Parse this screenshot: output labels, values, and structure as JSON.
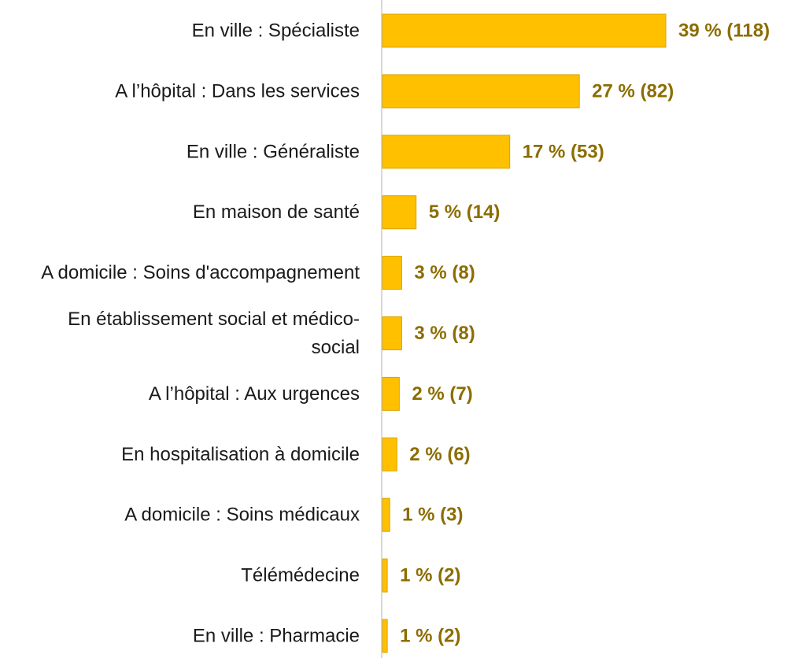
{
  "chart_data": {
    "type": "bar",
    "orientation": "horizontal",
    "title": "",
    "xlabel": "",
    "ylabel": "",
    "categories": [
      "En ville : Spécialiste",
      "A l’hôpital : Dans les services",
      "En ville : Généraliste",
      "En maison de santé",
      "A domicile : Soins d'accompagnement",
      "En établissement social et médico-social",
      "A l’hôpital : Aux urgences",
      "En hospitalisation à domicile",
      "A domicile : Soins médicaux",
      "Télémédecine",
      "En ville : Pharmacie"
    ],
    "category_lines": [
      [
        "En ville : Spécialiste"
      ],
      [
        "A l’hôpital : Dans les services"
      ],
      [
        "En ville : Généraliste"
      ],
      [
        "En maison de santé"
      ],
      [
        "A domicile : Soins d'accompagnement"
      ],
      [
        "En établissement social et médico-",
        "social"
      ],
      [
        "A l’hôpital : Aux urgences"
      ],
      [
        "En hospitalisation à domicile"
      ],
      [
        "A domicile : Soins médicaux"
      ],
      [
        "Télémédecine"
      ],
      [
        "En ville : Pharmacie"
      ]
    ],
    "counts": [
      118,
      82,
      53,
      14,
      8,
      8,
      7,
      6,
      3,
      2,
      2
    ],
    "percent_labels": [
      39,
      27,
      17,
      5,
      3,
      3,
      2,
      2,
      1,
      1,
      1
    ],
    "value_labels": [
      "39 % (118)",
      "27 % (82)",
      "17 % (53)",
      "5 % (14)",
      "3 % (8)",
      "3 % (8)",
      "2 % (7)",
      "2 % (6)",
      "1 % (3)",
      "1 % (2)",
      "1 % (2)"
    ],
    "xlim": [
      0,
      118
    ],
    "grid": false,
    "legend": "none",
    "colors": {
      "bar_fill": "#FFC000",
      "bar_stroke": "#D9A300",
      "value_text": "#8C6D00",
      "axis": "#D9D9D9"
    }
  }
}
